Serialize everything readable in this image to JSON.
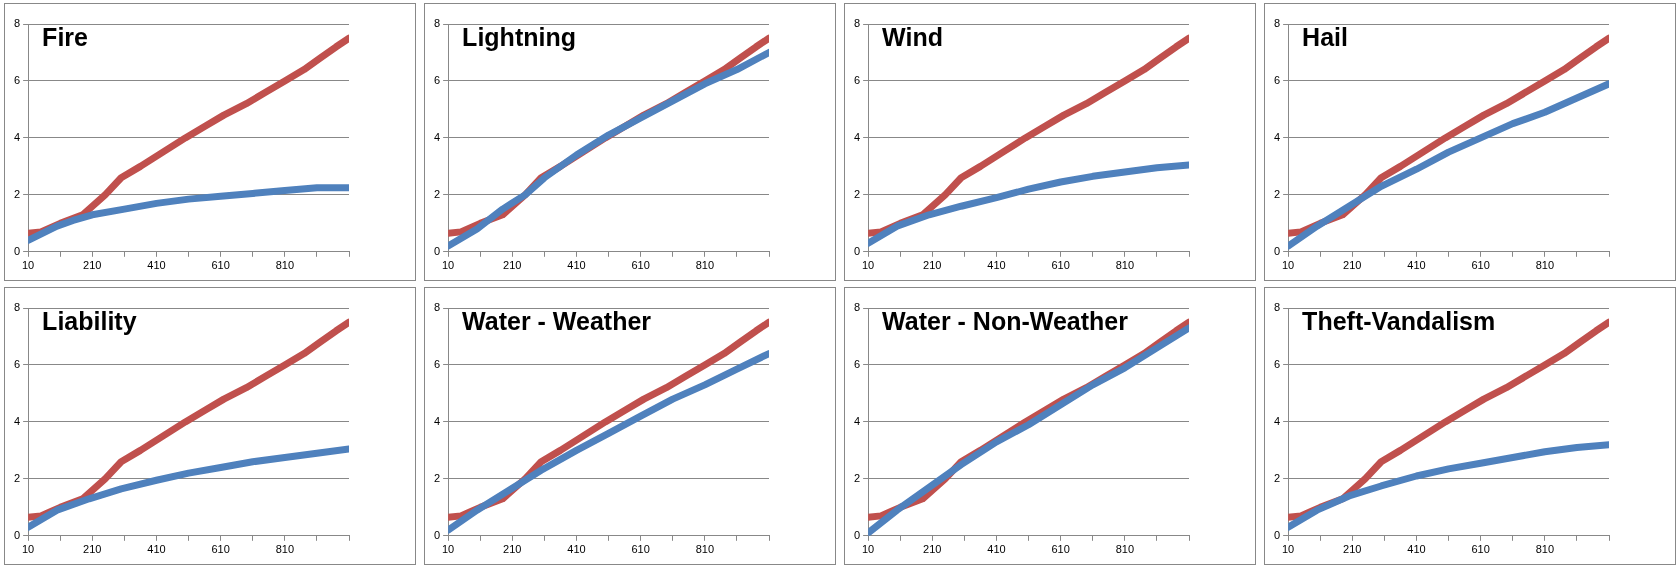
{
  "chart_data": [
    {
      "type": "line",
      "title": "Fire",
      "xlim": [
        10,
        1010
      ],
      "xticks": [
        10,
        {
          "value": 110,
          "label": null
        },
        210,
        {
          "value": 310,
          "label": null
        },
        410,
        {
          "value": 510,
          "label": null
        },
        610,
        {
          "value": 710,
          "label": null
        },
        810,
        {
          "value": 910,
          "label": null
        },
        {
          "value": 1010,
          "label": null
        }
      ],
      "ylim": [
        0,
        8
      ],
      "yticks": [
        0,
        2,
        4,
        6,
        8
      ],
      "grid": "y",
      "legend": false,
      "marker": "none",
      "line_style": "solid",
      "series": [
        {
          "color": "#4f81bd",
          "x": [
            10,
            100,
            150,
            210,
            310,
            410,
            510,
            610,
            710,
            810,
            910,
            1010
          ],
          "values": [
            0.4,
            0.9,
            1.1,
            1.3,
            1.5,
            1.7,
            1.85,
            1.95,
            2.05,
            2.15,
            2.25,
            2.25
          ]
        },
        {
          "color": "#c0504d",
          "x": [
            10,
            50,
            110,
            180,
            250,
            300,
            360,
            430,
            500,
            560,
            620,
            690,
            750,
            810,
            870,
            920,
            970,
            1010
          ],
          "values": [
            0.65,
            0.7,
            1.0,
            1.3,
            2.0,
            2.6,
            3.0,
            3.5,
            4.0,
            4.4,
            4.8,
            5.2,
            5.6,
            6.0,
            6.4,
            6.8,
            7.2,
            7.5
          ]
        }
      ]
    },
    {
      "type": "line",
      "title": "Lightning",
      "xlim": [
        10,
        1010
      ],
      "xticks": [
        10,
        {
          "value": 110,
          "label": null
        },
        210,
        {
          "value": 310,
          "label": null
        },
        410,
        {
          "value": 510,
          "label": null
        },
        610,
        {
          "value": 710,
          "label": null
        },
        810,
        {
          "value": 910,
          "label": null
        },
        {
          "value": 1010,
          "label": null
        }
      ],
      "ylim": [
        0,
        8
      ],
      "yticks": [
        0,
        2,
        4,
        6,
        8
      ],
      "grid": "y",
      "legend": false,
      "marker": "none",
      "line_style": "solid",
      "series": [
        {
          "color": "#4f81bd",
          "x": [
            10,
            100,
            180,
            250,
            310,
            410,
            510,
            610,
            710,
            810,
            910,
            1010
          ],
          "values": [
            0.2,
            0.8,
            1.5,
            2.0,
            2.6,
            3.4,
            4.1,
            4.7,
            5.3,
            5.9,
            6.4,
            7.0
          ]
        },
        {
          "color": "#c0504d",
          "x": [
            10,
            50,
            110,
            180,
            250,
            300,
            360,
            430,
            500,
            560,
            620,
            690,
            750,
            810,
            870,
            920,
            970,
            1010
          ],
          "values": [
            0.65,
            0.7,
            1.0,
            1.3,
            2.0,
            2.6,
            3.0,
            3.5,
            4.0,
            4.4,
            4.8,
            5.2,
            5.6,
            6.0,
            6.4,
            6.8,
            7.2,
            7.5
          ]
        }
      ]
    },
    {
      "type": "line",
      "title": "Wind",
      "xlim": [
        10,
        1010
      ],
      "xticks": [
        10,
        {
          "value": 110,
          "label": null
        },
        210,
        {
          "value": 310,
          "label": null
        },
        410,
        {
          "value": 510,
          "label": null
        },
        610,
        {
          "value": 710,
          "label": null
        },
        810,
        {
          "value": 910,
          "label": null
        },
        {
          "value": 1010,
          "label": null
        }
      ],
      "ylim": [
        0,
        8
      ],
      "yticks": [
        0,
        2,
        4,
        6,
        8
      ],
      "grid": "y",
      "legend": false,
      "marker": "none",
      "line_style": "solid",
      "series": [
        {
          "color": "#4f81bd",
          "x": [
            10,
            100,
            200,
            300,
            410,
            510,
            610,
            710,
            810,
            910,
            1010
          ],
          "values": [
            0.3,
            0.9,
            1.3,
            1.6,
            1.9,
            2.2,
            2.45,
            2.65,
            2.8,
            2.95,
            3.05
          ]
        },
        {
          "color": "#c0504d",
          "x": [
            10,
            50,
            110,
            180,
            250,
            300,
            360,
            430,
            500,
            560,
            620,
            690,
            750,
            810,
            870,
            920,
            970,
            1010
          ],
          "values": [
            0.65,
            0.7,
            1.0,
            1.3,
            2.0,
            2.6,
            3.0,
            3.5,
            4.0,
            4.4,
            4.8,
            5.2,
            5.6,
            6.0,
            6.4,
            6.8,
            7.2,
            7.5
          ]
        }
      ]
    },
    {
      "type": "line",
      "title": "Hail",
      "xlim": [
        10,
        1010
      ],
      "xticks": [
        10,
        {
          "value": 110,
          "label": null
        },
        210,
        {
          "value": 310,
          "label": null
        },
        410,
        {
          "value": 510,
          "label": null
        },
        610,
        {
          "value": 710,
          "label": null
        },
        810,
        {
          "value": 910,
          "label": null
        },
        {
          "value": 1010,
          "label": null
        }
      ],
      "ylim": [
        0,
        8
      ],
      "yticks": [
        0,
        2,
        4,
        6,
        8
      ],
      "grid": "y",
      "legend": false,
      "marker": "none",
      "line_style": "solid",
      "series": [
        {
          "color": "#4f81bd",
          "x": [
            10,
            100,
            200,
            300,
            410,
            510,
            610,
            710,
            810,
            910,
            1010
          ],
          "values": [
            0.2,
            0.9,
            1.6,
            2.3,
            2.9,
            3.5,
            4.0,
            4.5,
            4.9,
            5.4,
            5.9
          ]
        },
        {
          "color": "#c0504d",
          "x": [
            10,
            50,
            110,
            180,
            250,
            300,
            360,
            430,
            500,
            560,
            620,
            690,
            750,
            810,
            870,
            920,
            970,
            1010
          ],
          "values": [
            0.65,
            0.7,
            1.0,
            1.3,
            2.0,
            2.6,
            3.0,
            3.5,
            4.0,
            4.4,
            4.8,
            5.2,
            5.6,
            6.0,
            6.4,
            6.8,
            7.2,
            7.5
          ]
        }
      ]
    },
    {
      "type": "line",
      "title": "Liability",
      "xlim": [
        10,
        1010
      ],
      "xticks": [
        10,
        {
          "value": 110,
          "label": null
        },
        210,
        {
          "value": 310,
          "label": null
        },
        410,
        {
          "value": 510,
          "label": null
        },
        610,
        {
          "value": 710,
          "label": null
        },
        810,
        {
          "value": 910,
          "label": null
        },
        {
          "value": 1010,
          "label": null
        }
      ],
      "ylim": [
        0,
        8
      ],
      "yticks": [
        0,
        2,
        4,
        6,
        8
      ],
      "grid": "y",
      "legend": false,
      "marker": "none",
      "line_style": "solid",
      "series": [
        {
          "color": "#4f81bd",
          "x": [
            10,
            100,
            200,
            300,
            410,
            510,
            610,
            710,
            810,
            910,
            1010
          ],
          "values": [
            0.3,
            0.9,
            1.3,
            1.65,
            1.95,
            2.2,
            2.4,
            2.6,
            2.75,
            2.9,
            3.05
          ]
        },
        {
          "color": "#c0504d",
          "x": [
            10,
            50,
            110,
            180,
            250,
            300,
            360,
            430,
            500,
            560,
            620,
            690,
            750,
            810,
            870,
            920,
            970,
            1010
          ],
          "values": [
            0.65,
            0.7,
            1.0,
            1.3,
            2.0,
            2.6,
            3.0,
            3.5,
            4.0,
            4.4,
            4.8,
            5.2,
            5.6,
            6.0,
            6.4,
            6.8,
            7.2,
            7.5
          ]
        }
      ]
    },
    {
      "type": "line",
      "title": "Water - Weather",
      "xlim": [
        10,
        1010
      ],
      "xticks": [
        10,
        {
          "value": 110,
          "label": null
        },
        210,
        {
          "value": 310,
          "label": null
        },
        410,
        {
          "value": 510,
          "label": null
        },
        610,
        {
          "value": 710,
          "label": null
        },
        810,
        {
          "value": 910,
          "label": null
        },
        {
          "value": 1010,
          "label": null
        }
      ],
      "ylim": [
        0,
        8
      ],
      "yticks": [
        0,
        2,
        4,
        6,
        8
      ],
      "grid": "y",
      "legend": false,
      "marker": "none",
      "line_style": "solid",
      "series": [
        {
          "color": "#4f81bd",
          "x": [
            10,
            100,
            200,
            300,
            410,
            510,
            610,
            710,
            810,
            910,
            1010
          ],
          "values": [
            0.2,
            0.9,
            1.6,
            2.3,
            3.0,
            3.6,
            4.2,
            4.8,
            5.3,
            5.85,
            6.4
          ]
        },
        {
          "color": "#c0504d",
          "x": [
            10,
            50,
            110,
            180,
            250,
            300,
            360,
            430,
            500,
            560,
            620,
            690,
            750,
            810,
            870,
            920,
            970,
            1010
          ],
          "values": [
            0.65,
            0.7,
            1.0,
            1.3,
            2.0,
            2.6,
            3.0,
            3.5,
            4.0,
            4.4,
            4.8,
            5.2,
            5.6,
            6.0,
            6.4,
            6.8,
            7.2,
            7.5
          ]
        }
      ]
    },
    {
      "type": "line",
      "title": "Water - Non-Weather",
      "xlim": [
        10,
        1010
      ],
      "xticks": [
        10,
        {
          "value": 110,
          "label": null
        },
        210,
        {
          "value": 310,
          "label": null
        },
        410,
        {
          "value": 510,
          "label": null
        },
        610,
        {
          "value": 710,
          "label": null
        },
        810,
        {
          "value": 910,
          "label": null
        },
        {
          "value": 1010,
          "label": null
        }
      ],
      "ylim": [
        0,
        8
      ],
      "yticks": [
        0,
        2,
        4,
        6,
        8
      ],
      "grid": "y",
      "legend": false,
      "marker": "none",
      "line_style": "solid",
      "series": [
        {
          "color": "#4f81bd",
          "x": [
            10,
            100,
            200,
            300,
            410,
            510,
            610,
            710,
            810,
            910,
            1010
          ],
          "values": [
            0.1,
            0.9,
            1.7,
            2.5,
            3.3,
            3.9,
            4.6,
            5.3,
            5.9,
            6.6,
            7.3
          ]
        },
        {
          "color": "#c0504d",
          "x": [
            10,
            50,
            110,
            180,
            250,
            300,
            360,
            430,
            500,
            560,
            620,
            690,
            750,
            810,
            870,
            920,
            970,
            1010
          ],
          "values": [
            0.65,
            0.7,
            1.0,
            1.3,
            2.0,
            2.6,
            3.0,
            3.5,
            4.0,
            4.4,
            4.8,
            5.2,
            5.6,
            6.0,
            6.4,
            6.8,
            7.2,
            7.5
          ]
        }
      ]
    },
    {
      "type": "line",
      "title": "Theft-Vandalism",
      "xlim": [
        10,
        1010
      ],
      "xticks": [
        10,
        {
          "value": 110,
          "label": null
        },
        210,
        {
          "value": 310,
          "label": null
        },
        410,
        {
          "value": 510,
          "label": null
        },
        610,
        {
          "value": 710,
          "label": null
        },
        810,
        {
          "value": 910,
          "label": null
        },
        {
          "value": 1010,
          "label": null
        }
      ],
      "ylim": [
        0,
        8
      ],
      "yticks": [
        0,
        2,
        4,
        6,
        8
      ],
      "grid": "y",
      "legend": false,
      "marker": "none",
      "line_style": "solid",
      "series": [
        {
          "color": "#4f81bd",
          "x": [
            10,
            100,
            200,
            300,
            410,
            510,
            610,
            710,
            810,
            910,
            1010
          ],
          "values": [
            0.3,
            0.9,
            1.4,
            1.75,
            2.1,
            2.35,
            2.55,
            2.75,
            2.95,
            3.1,
            3.2
          ]
        },
        {
          "color": "#c0504d",
          "x": [
            10,
            50,
            110,
            180,
            250,
            300,
            360,
            430,
            500,
            560,
            620,
            690,
            750,
            810,
            870,
            920,
            970,
            1010
          ],
          "values": [
            0.65,
            0.7,
            1.0,
            1.3,
            2.0,
            2.6,
            3.0,
            3.5,
            4.0,
            4.4,
            4.8,
            5.2,
            5.6,
            6.0,
            6.4,
            6.8,
            7.2,
            7.5
          ]
        }
      ]
    }
  ]
}
